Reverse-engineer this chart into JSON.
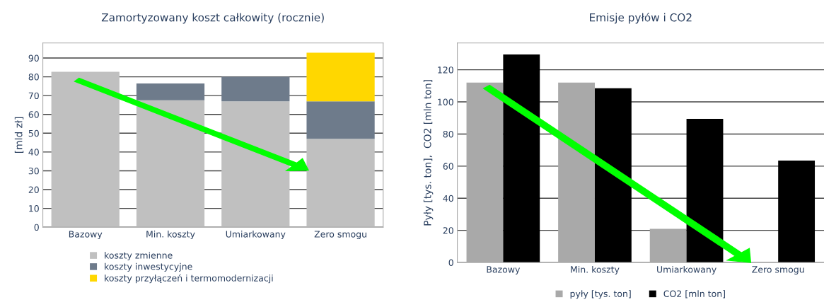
{
  "chart_data": [
    {
      "type": "bar",
      "title": "Zamortyzowany koszt całkowity (rocznie)",
      "ylabel": "[mld zł]",
      "categories": [
        "Bazowy",
        "Min. koszty",
        "Umiarkowany",
        "Zero smogu"
      ],
      "stacked": true,
      "series": [
        {
          "name": "koszty zmienne",
          "color": "#c0c0c0",
          "values": [
            82.7,
            67.5,
            67,
            47
          ]
        },
        {
          "name": "koszty inwestycyjne",
          "color": "#6e7b8b",
          "values": [
            null,
            9,
            13,
            20
          ]
        },
        {
          "name": "koszty przyłączeń i termomodernizacji",
          "color": "#ffd700",
          "values": [
            null,
            null,
            null,
            25.8
          ]
        }
      ],
      "ylim": [
        0,
        98
      ],
      "yticks": [
        0,
        10,
        20,
        30,
        40,
        50,
        60,
        70,
        80,
        90
      ],
      "grid": "y",
      "legend": "bottom"
    },
    {
      "type": "bar",
      "title": "Emisje pyłów i CO2",
      "ylabel": "Pyły [tys. ton],  CO2 [mln ton]",
      "categories": [
        "Bazowy",
        "Min. koszty",
        "Umiarkowany",
        "Zero smogu"
      ],
      "series": [
        {
          "name": "pyły [tys. ton]",
          "color": "#a9a9a9",
          "values": [
            112,
            112,
            21,
            null
          ]
        },
        {
          "name": "CO2 [mln ton]",
          "color": "#000000",
          "values": [
            129.5,
            108.5,
            89.5,
            63.5
          ]
        }
      ],
      "ylim": [
        0,
        136.7
      ],
      "yticks": [
        0,
        20,
        40,
        60,
        80,
        100,
        120
      ],
      "grid": "y",
      "legend": "bottom"
    }
  ]
}
